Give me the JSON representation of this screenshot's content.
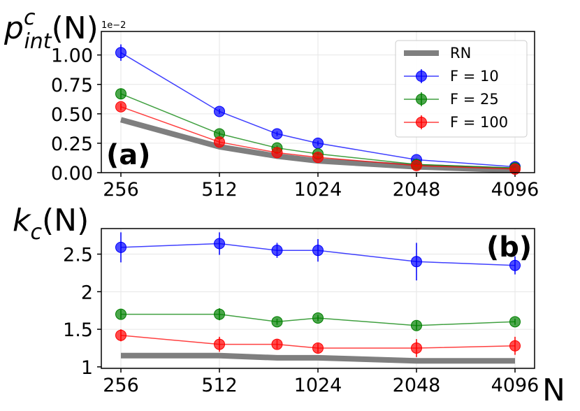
{
  "colors": {
    "RN": "#7f7f7f",
    "F = 10": "#0000ff",
    "F = 25": "#008000",
    "F = 100": "#ff0000",
    "grid": "#e6e6e6",
    "axis": "#000000"
  },
  "xlabel": "N",
  "chart_data": [
    {
      "type": "line",
      "panel": "(a)",
      "ylabel_base": "p",
      "ylabel_sup": "c",
      "ylabel_sub": "int",
      "ylabel_arg": "(N)",
      "offset_text": "1e−2",
      "x": [
        256,
        512,
        768,
        1024,
        2048,
        4096
      ],
      "x_ticks": [
        256,
        512,
        1024,
        2048,
        4096
      ],
      "x_tick_labels": [
        "256",
        "512",
        "1024",
        "2048",
        "4096"
      ],
      "y_ticks": [
        0,
        0.25,
        0.5,
        0.75,
        1.0
      ],
      "y_tick_labels": [
        "0.00",
        "0.25",
        "0.50",
        "0.75",
        "1.00"
      ],
      "ylim": [
        0,
        1.2
      ],
      "legend_position": "top-right",
      "legend": [
        "RN",
        "F = 10",
        "F = 25",
        "F = 100"
      ],
      "series": [
        {
          "name": "RN",
          "style": "thick",
          "values": [
            0.45,
            0.22,
            0.14,
            0.1,
            0.05,
            0.02
          ]
        },
        {
          "name": "F = 10",
          "values": [
            1.02,
            0.52,
            0.33,
            0.25,
            0.11,
            0.05
          ],
          "errors": [
            0.07,
            0.02,
            0.02,
            0.02,
            0.01,
            0.01
          ]
        },
        {
          "name": "F = 25",
          "values": [
            0.67,
            0.33,
            0.21,
            0.16,
            0.07,
            0.04
          ],
          "errors": [
            0.04,
            0.02,
            0.02,
            0.01,
            0.01,
            0.01
          ]
        },
        {
          "name": "F = 100",
          "values": [
            0.56,
            0.26,
            0.17,
            0.13,
            0.06,
            0.03
          ],
          "errors": [
            0.03,
            0.02,
            0.01,
            0.01,
            0.01,
            0.01
          ]
        }
      ]
    },
    {
      "type": "line",
      "panel": "(b)",
      "ylabel_base": "k",
      "ylabel_sub": "c",
      "ylabel_arg": "(N)",
      "x": [
        256,
        512,
        768,
        1024,
        2048,
        4096
      ],
      "x_ticks": [
        256,
        512,
        1024,
        2048,
        4096
      ],
      "x_tick_labels": [
        "256",
        "512",
        "1024",
        "2048",
        "4096"
      ],
      "y_ticks": [
        1,
        1.5,
        2,
        2.5
      ],
      "y_tick_labels": [
        "1",
        "1.5",
        "2",
        "2.5"
      ],
      "ylim": [
        0.98,
        2.84
      ],
      "series": [
        {
          "name": "RN",
          "style": "thick",
          "values": [
            1.15,
            1.15,
            1.12,
            1.12,
            1.08,
            1.08
          ]
        },
        {
          "name": "F = 10",
          "values": [
            2.59,
            2.64,
            2.55,
            2.55,
            2.4,
            2.35
          ],
          "errors": [
            0.2,
            0.15,
            0.1,
            0.15,
            0.25,
            0.12
          ]
        },
        {
          "name": "F = 25",
          "values": [
            1.7,
            1.7,
            1.6,
            1.65,
            1.55,
            1.6
          ],
          "errors": [
            0.06,
            0.08,
            0.04,
            0.04,
            0.06,
            0.04
          ]
        },
        {
          "name": "F = 100",
          "values": [
            1.42,
            1.3,
            1.3,
            1.25,
            1.25,
            1.28
          ],
          "errors": [
            0.08,
            0.1,
            0.06,
            0.06,
            0.12,
            0.12
          ]
        }
      ]
    }
  ]
}
